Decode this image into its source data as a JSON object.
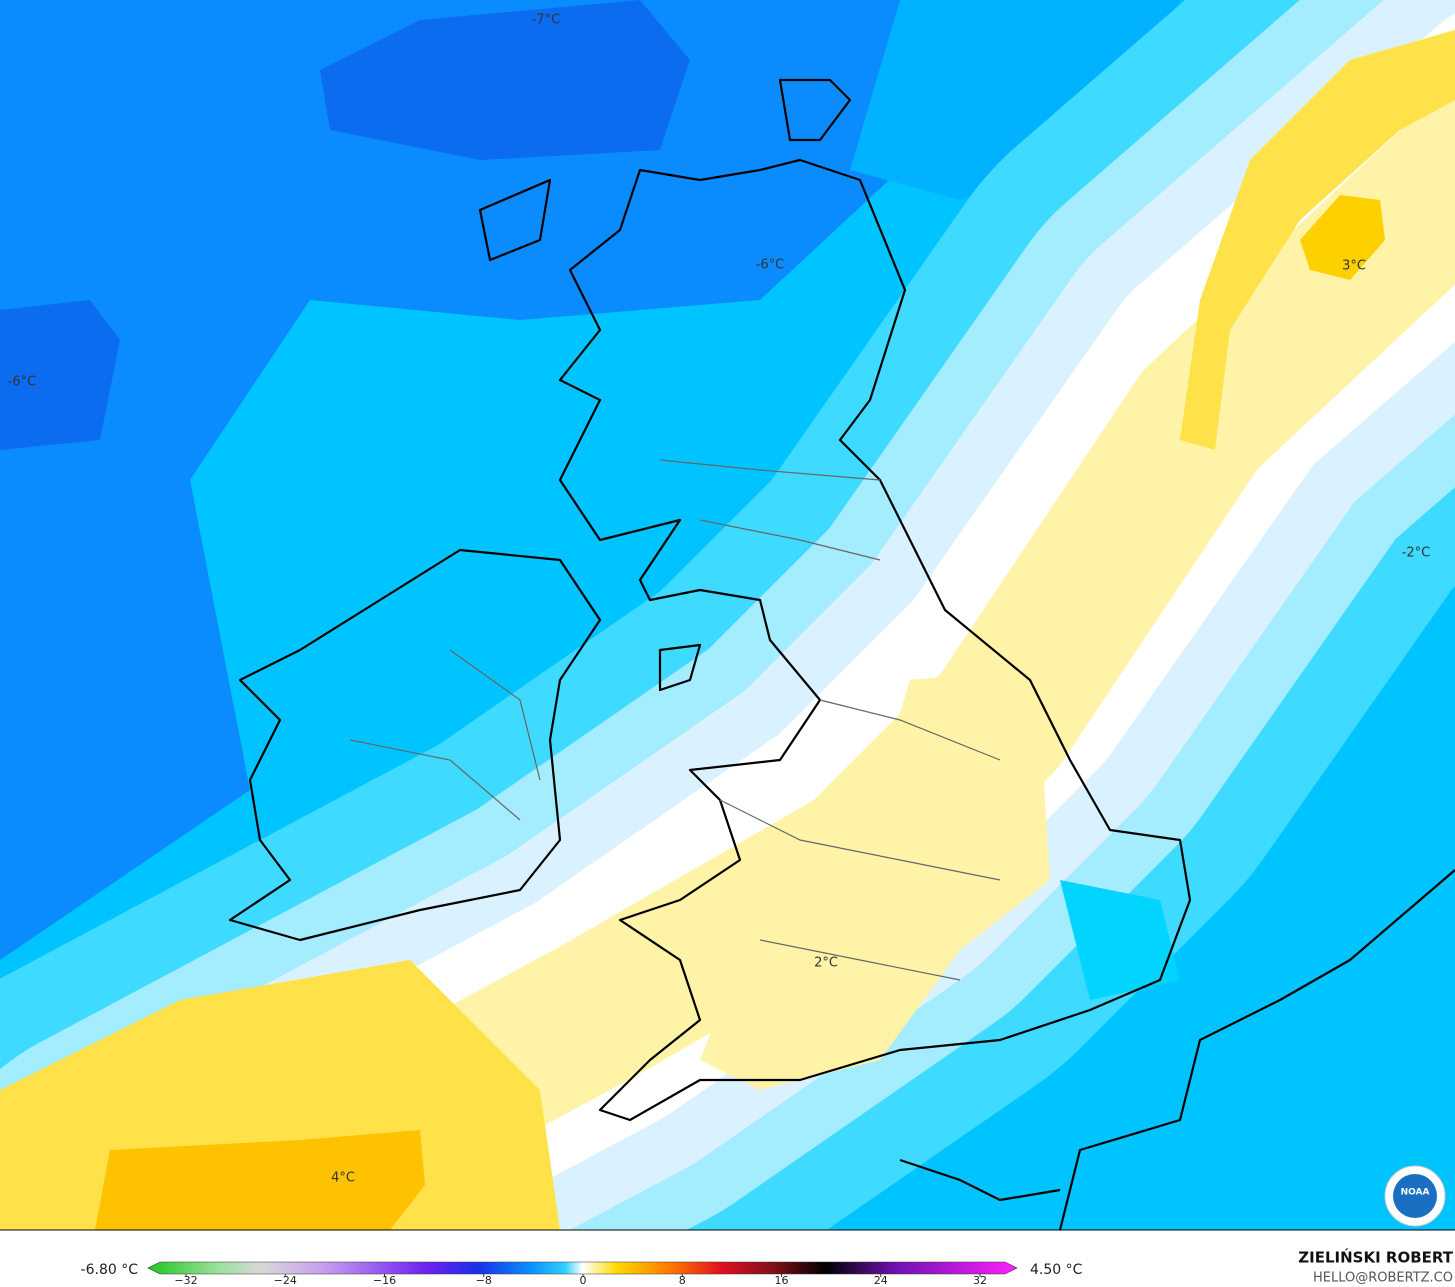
{
  "map": {
    "labels": [
      "-7°C",
      "-6°C",
      "-6°C",
      "3°C",
      "-2°C",
      "4°C",
      "2°C"
    ]
  },
  "legend": {
    "min_label": "-6.80 °C",
    "max_label": "4.50 °C",
    "ticks": [
      "−32",
      "−24",
      "−16",
      "−8",
      "0",
      "8",
      "16",
      "24",
      "32"
    ]
  },
  "credit": {
    "author": "ZIELIŃSKI ROBERT",
    "contact": "HELLO@ROBERTZ.CO",
    "logo": "NOAA"
  }
}
